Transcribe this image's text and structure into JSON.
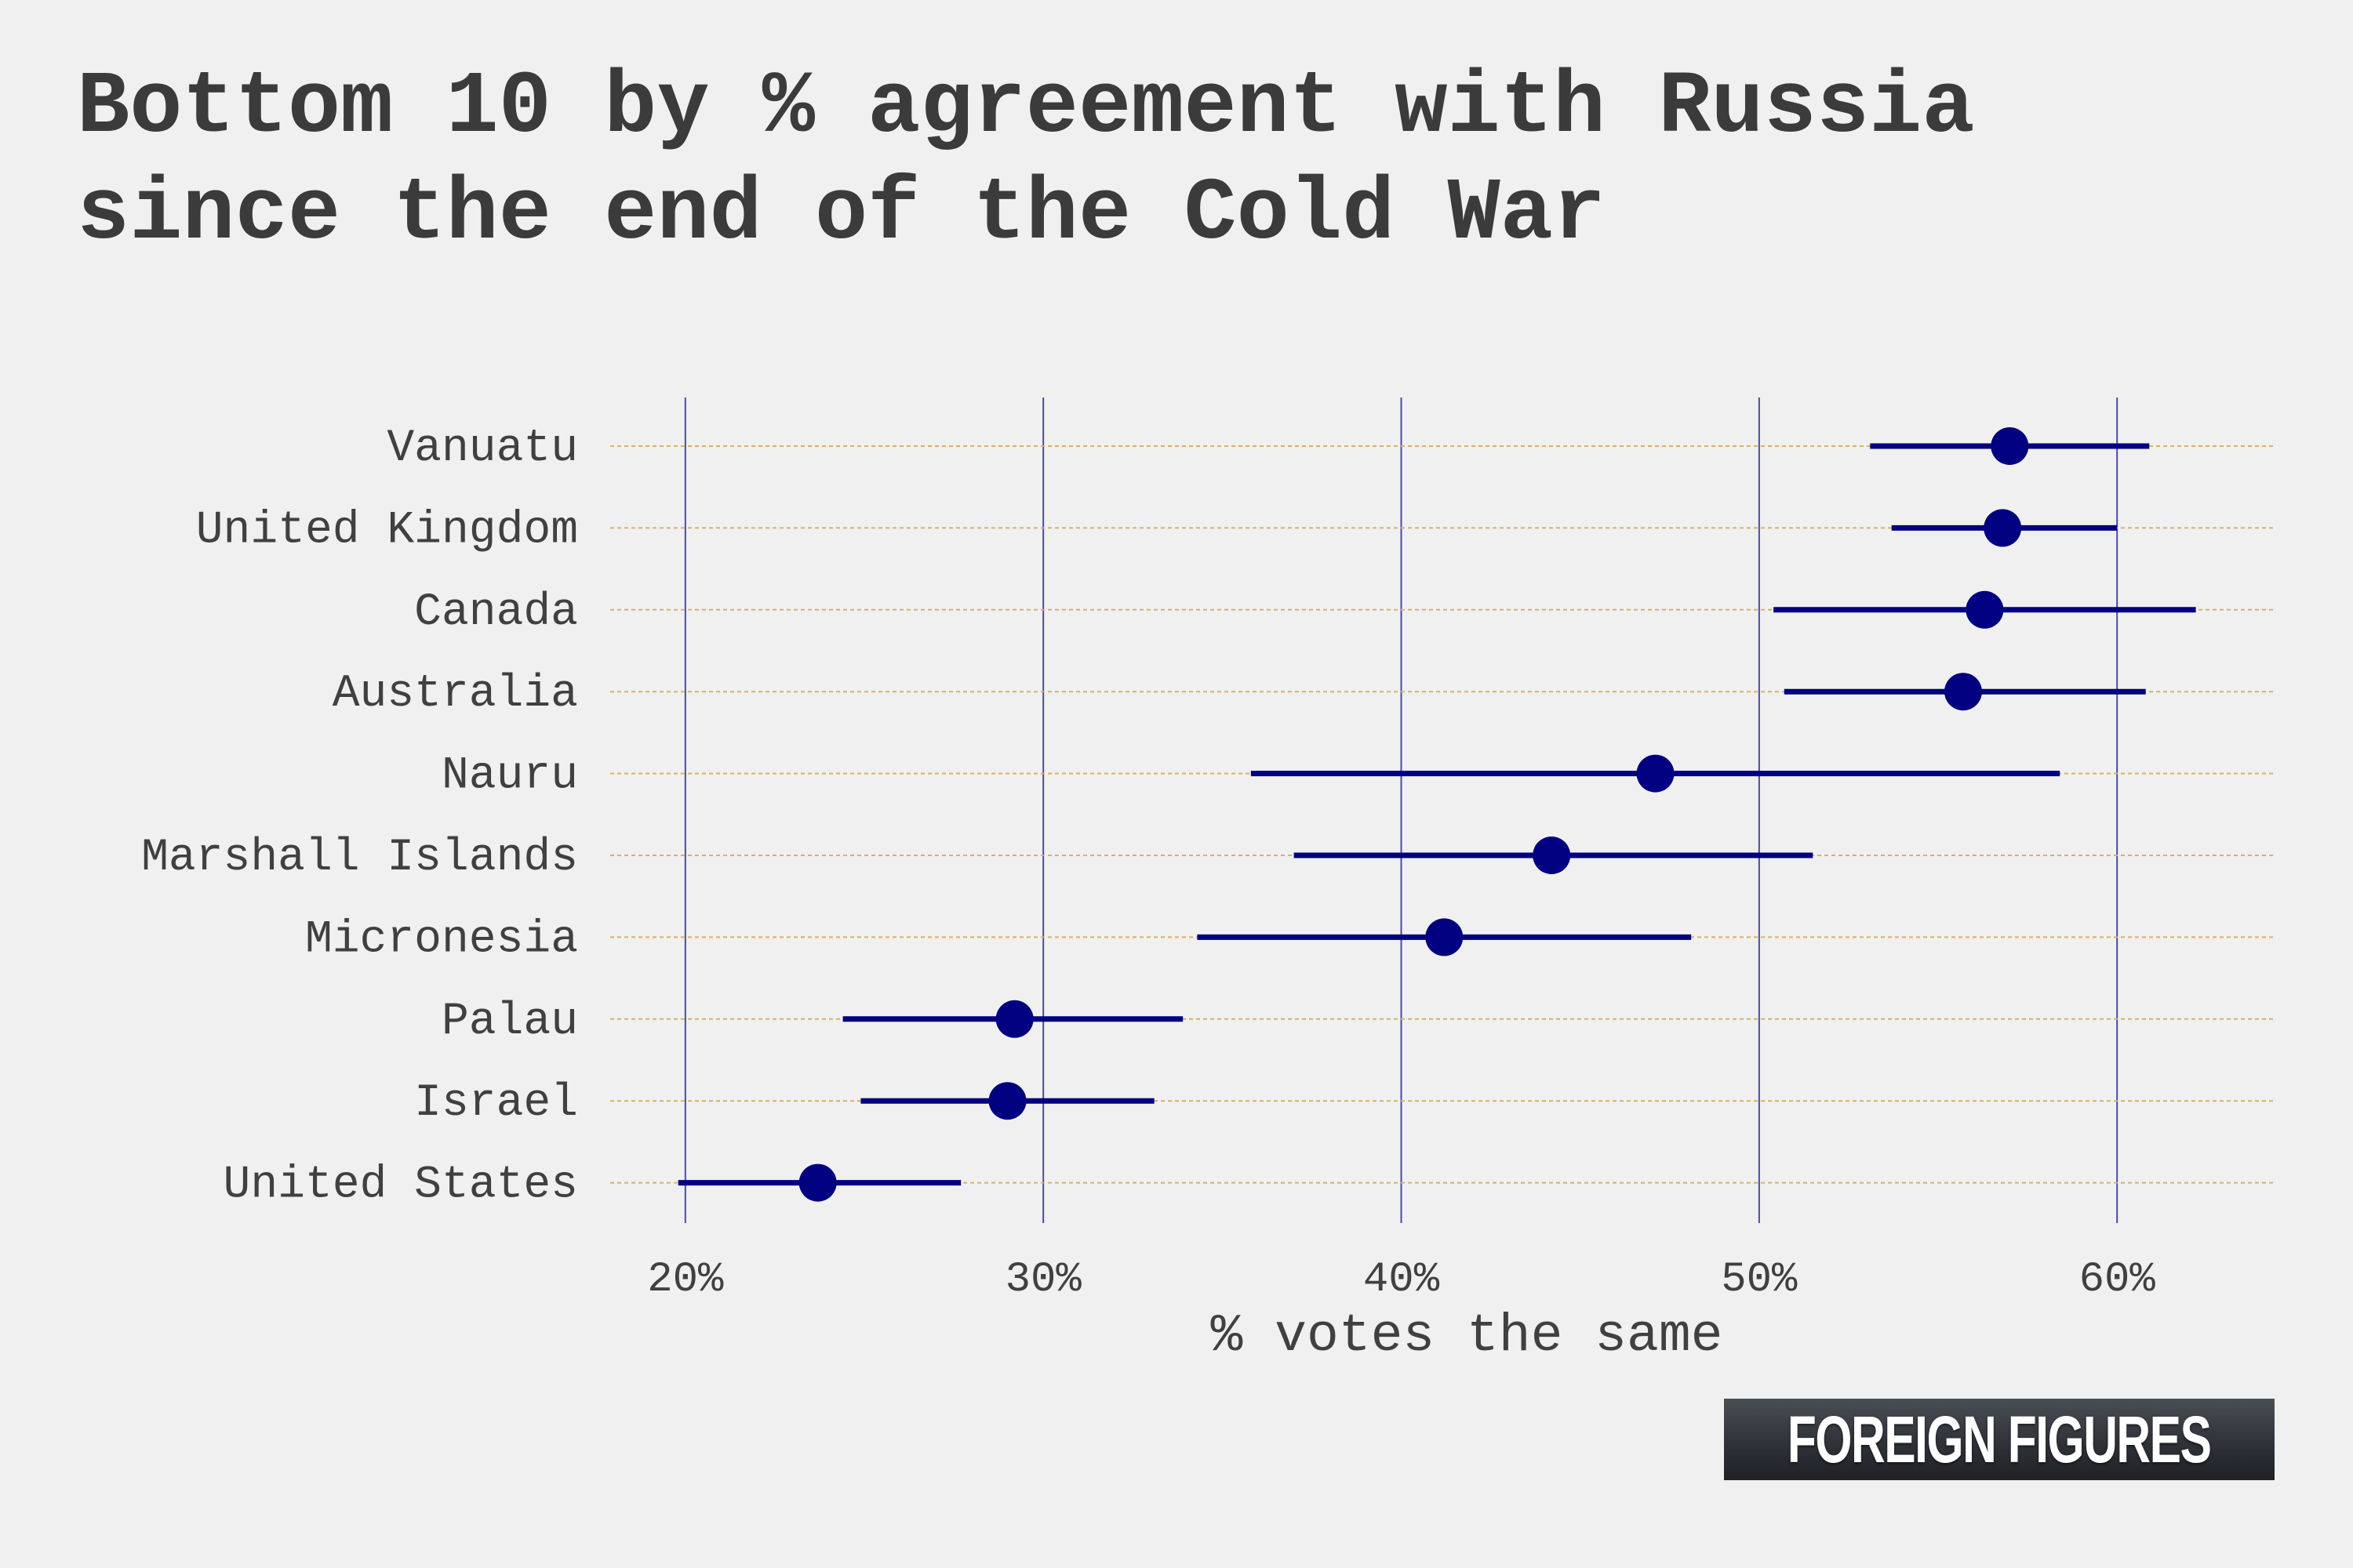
{
  "title": "Bottom 10 by % agreement with Russia since the end of the Cold War",
  "logo": {
    "text": "FOREIGN FIGURES"
  },
  "colors": {
    "point": "#000080",
    "interval": "#000080",
    "vertical_grid": "#4a4aa8",
    "row_guide": "#d8b06a",
    "text": "#404040"
  },
  "chart_data": {
    "type": "scatter",
    "title": "Bottom 10 by % agreement with Russia since the end of the Cold War",
    "xlabel": "% votes the same",
    "ylabel": "",
    "xlim": [
      17.9,
      64.4
    ],
    "xticks": [
      20,
      30,
      40,
      50,
      60
    ],
    "xtick_labels": [
      "20%",
      "30%",
      "40%",
      "50%",
      "60%"
    ],
    "grid": true,
    "legend": "none",
    "categories": [
      "Vanuatu",
      "United Kingdom",
      "Canada",
      "Australia",
      "Nauru",
      "Marshall Islands",
      "Micronesia",
      "Palau",
      "Israel",
      "United States"
    ],
    "points": [
      {
        "country": "Vanuatu",
        "value": 57.0,
        "low": 53.1,
        "high": 60.9
      },
      {
        "country": "United Kingdom",
        "value": 56.8,
        "low": 53.7,
        "high": 60.0
      },
      {
        "country": "Canada",
        "value": 56.3,
        "low": 50.4,
        "high": 62.2
      },
      {
        "country": "Australia",
        "value": 55.7,
        "low": 50.7,
        "high": 60.8
      },
      {
        "country": "Nauru",
        "value": 47.1,
        "low": 35.8,
        "high": 58.4
      },
      {
        "country": "Marshall Islands",
        "value": 44.2,
        "low": 37.0,
        "high": 51.5
      },
      {
        "country": "Micronesia",
        "value": 41.2,
        "low": 34.3,
        "high": 48.1
      },
      {
        "country": "Palau",
        "value": 29.2,
        "low": 24.4,
        "high": 33.9
      },
      {
        "country": "Israel",
        "value": 29.0,
        "low": 24.9,
        "high": 33.1
      },
      {
        "country": "United States",
        "value": 23.7,
        "low": 19.8,
        "high": 27.7
      }
    ]
  }
}
